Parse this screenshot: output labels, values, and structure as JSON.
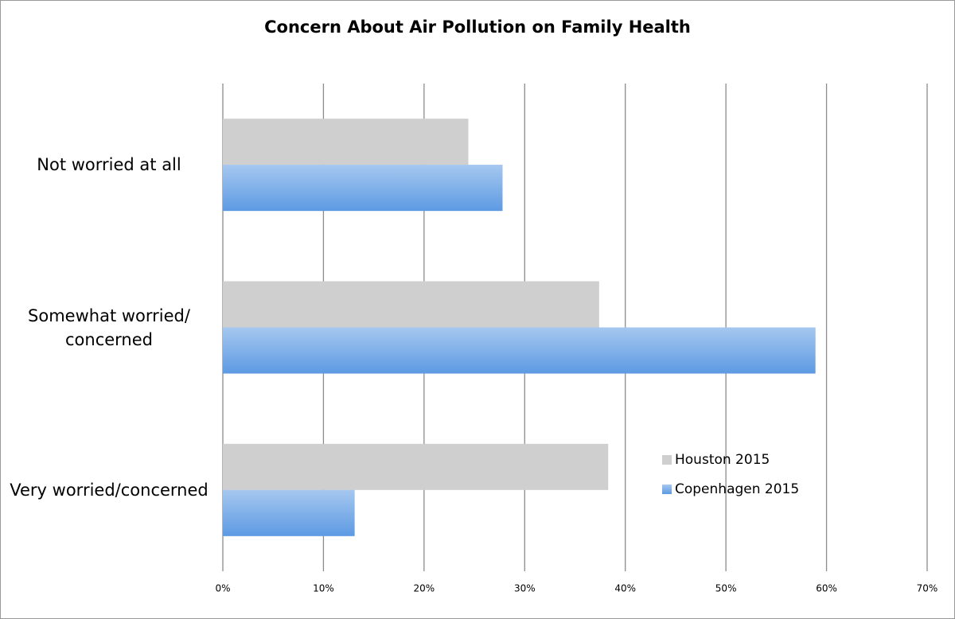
{
  "chart_data": {
    "type": "hbar",
    "title": "Concern About Air Pollution on Family Health",
    "categories": [
      "Not worried at all",
      "Somewhat worried/\nconcerned",
      "Very worried/concerned"
    ],
    "series": [
      {
        "name": "Houston 2015",
        "color": "#cfcfcf",
        "values": [
          24.4,
          37.4,
          38.3
        ]
      },
      {
        "name": "Copenhagen 2015",
        "color": "#5d9ae3",
        "gradient": true,
        "values": [
          27.8,
          58.9,
          13.1
        ]
      }
    ],
    "xlim": [
      0,
      70
    ],
    "xticks": [
      {
        "value": 0,
        "label": "0%"
      },
      {
        "value": 10,
        "label": "10%"
      },
      {
        "value": 20,
        "label": "20%"
      },
      {
        "value": 30,
        "label": "30%"
      },
      {
        "value": 40,
        "label": "40%"
      },
      {
        "value": 50,
        "label": "50%"
      },
      {
        "value": 60,
        "label": "60%"
      },
      {
        "value": 70,
        "label": "70%"
      }
    ],
    "grid": true,
    "legend": "lower-right"
  }
}
